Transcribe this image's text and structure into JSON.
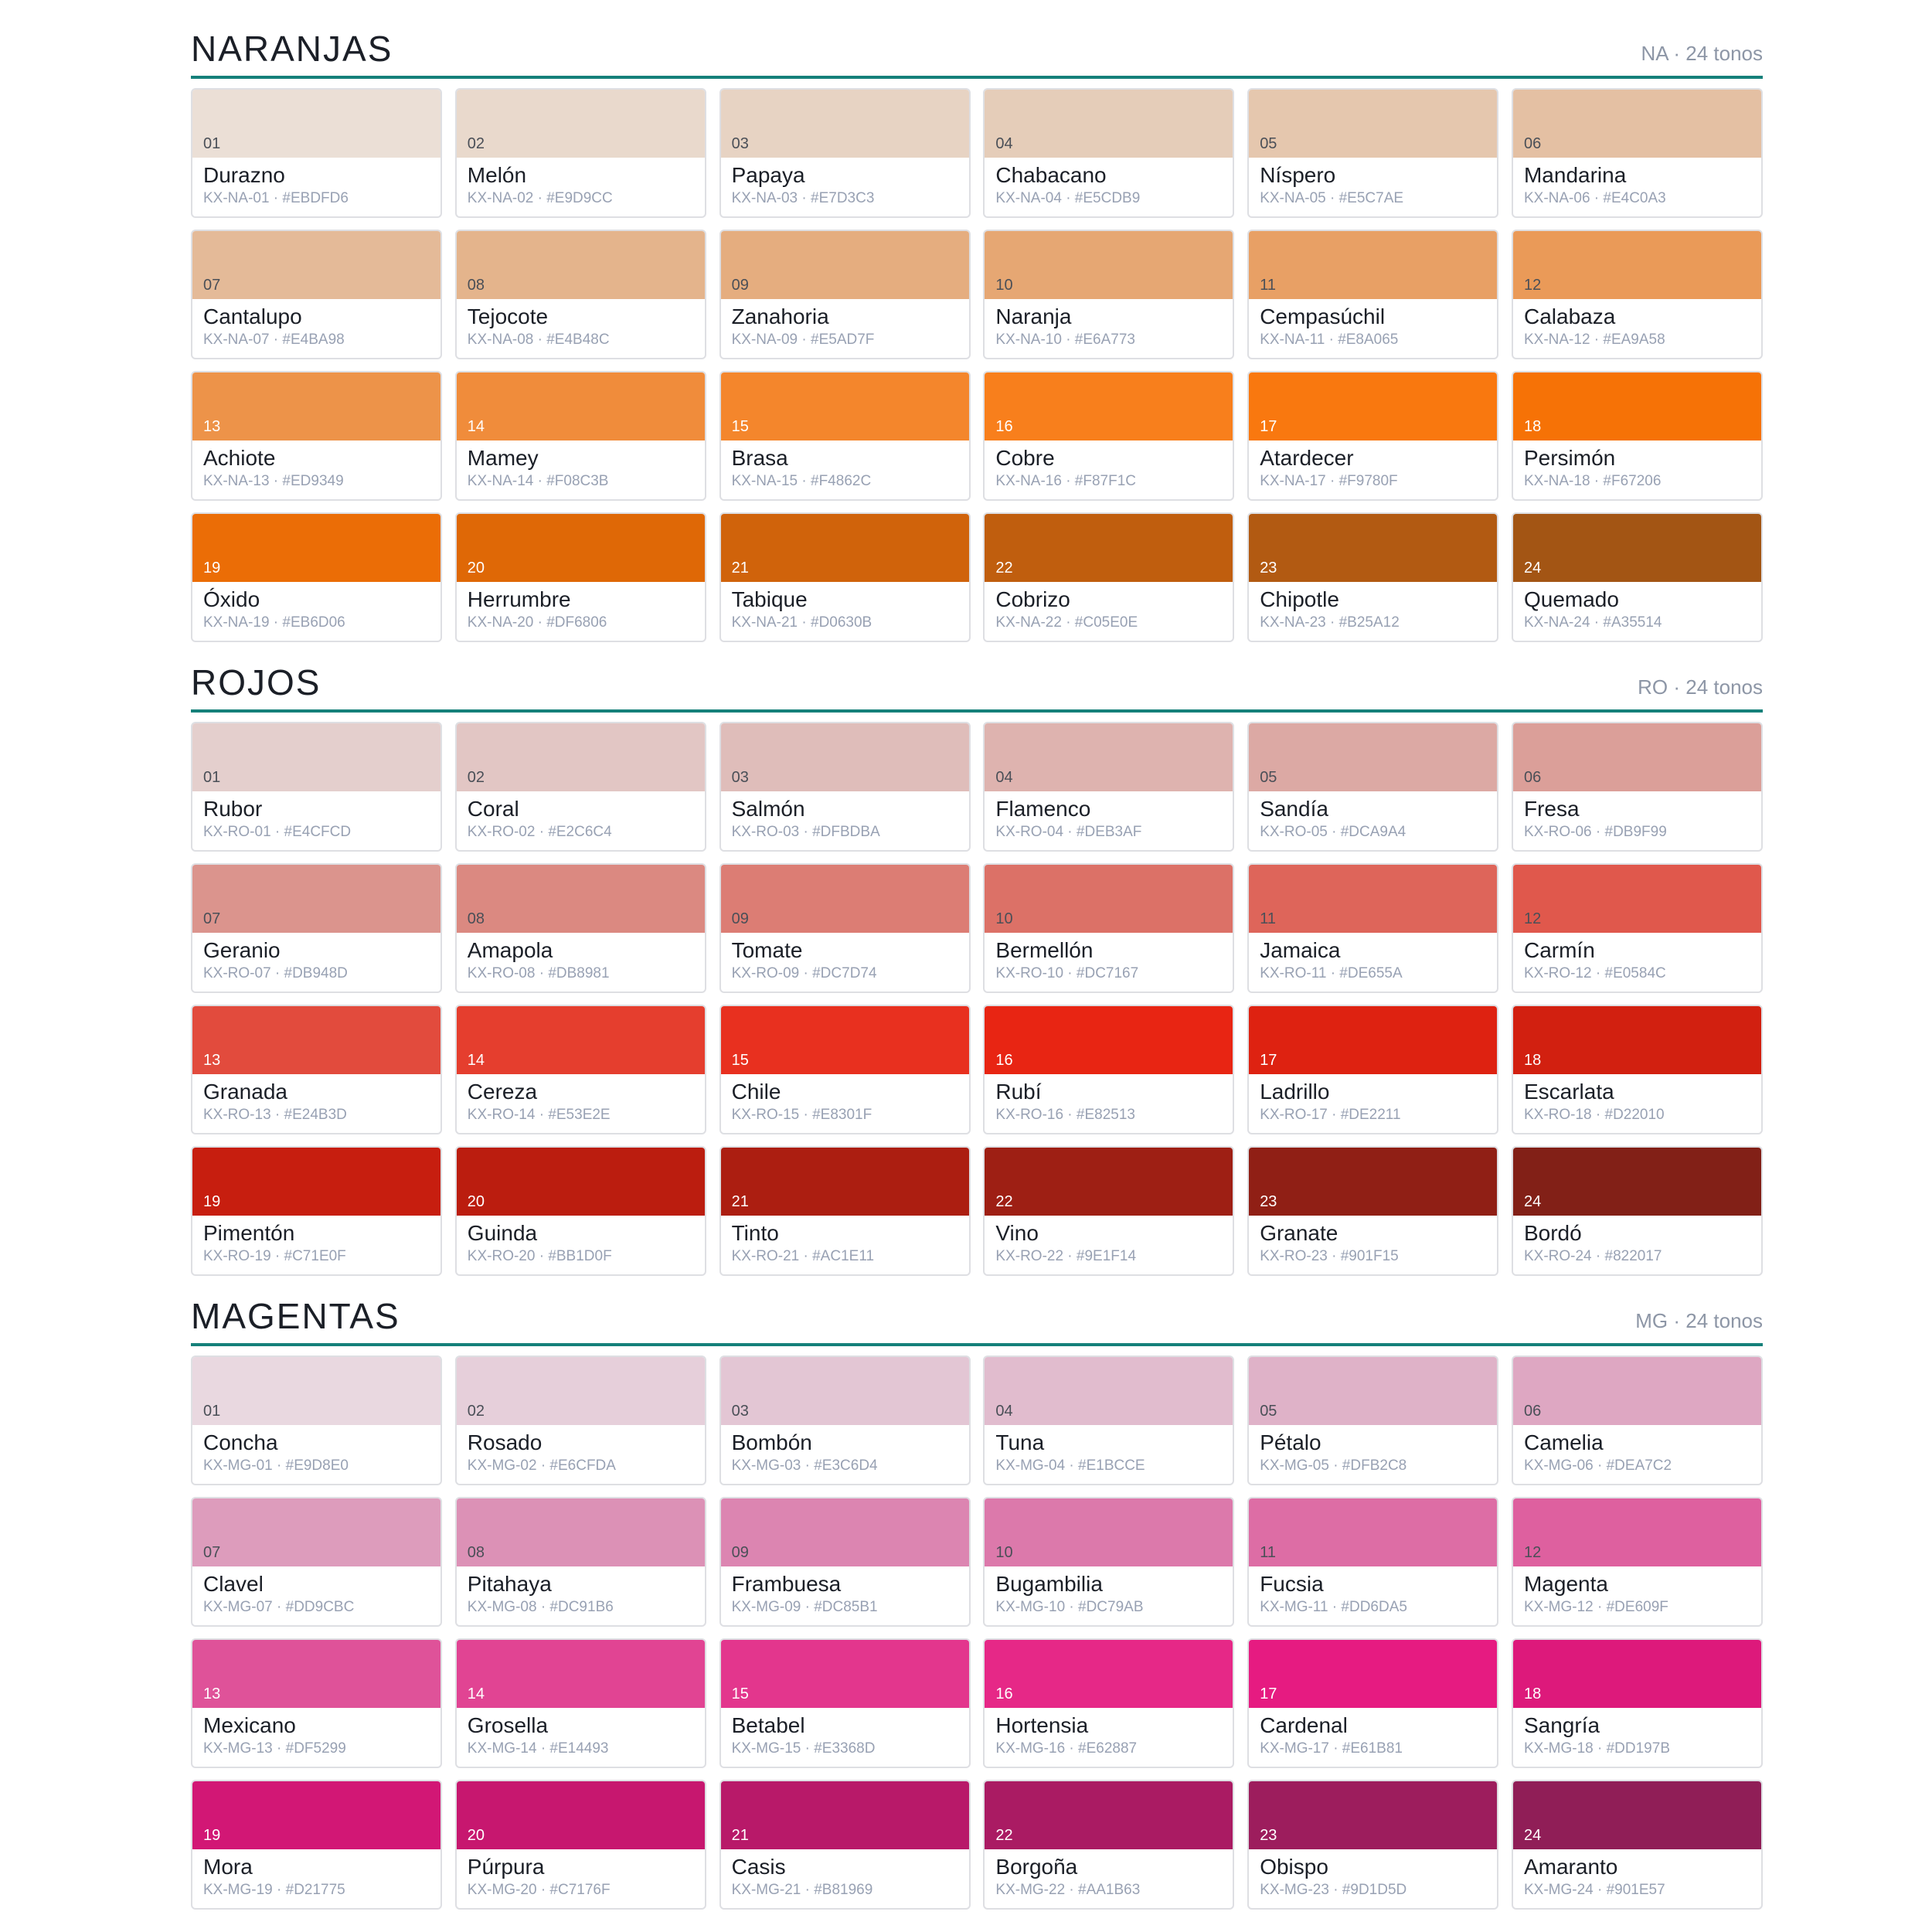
{
  "sections": [
    {
      "title": "NARANJAS",
      "meta": "NA · 24 tonos",
      "swatches": [
        {
          "num": "01",
          "name": "Durazno",
          "code": "KX-NA-01 · #EBDFD6",
          "hex": "#EBDFD6"
        },
        {
          "num": "02",
          "name": "Melón",
          "code": "KX-NA-02 · #E9D9CC",
          "hex": "#E9D9CC"
        },
        {
          "num": "03",
          "name": "Papaya",
          "code": "KX-NA-03 · #E7D3C3",
          "hex": "#E7D3C3"
        },
        {
          "num": "04",
          "name": "Chabacano",
          "code": "KX-NA-04 · #E5CDB9",
          "hex": "#E5CDB9"
        },
        {
          "num": "05",
          "name": "Níspero",
          "code": "KX-NA-05 · #E5C7AE",
          "hex": "#E5C7AE"
        },
        {
          "num": "06",
          "name": "Mandarina",
          "code": "KX-NA-06 · #E4C0A3",
          "hex": "#E4C0A3"
        },
        {
          "num": "07",
          "name": "Cantalupo",
          "code": "KX-NA-07 · #E4BA98",
          "hex": "#E4BA98"
        },
        {
          "num": "08",
          "name": "Tejocote",
          "code": "KX-NA-08 · #E4B48C",
          "hex": "#E4B48C"
        },
        {
          "num": "09",
          "name": "Zanahoria",
          "code": "KX-NA-09 · #E5AD7F",
          "hex": "#E5AD7F"
        },
        {
          "num": "10",
          "name": "Naranja",
          "code": "KX-NA-10 · #E6A773",
          "hex": "#E6A773"
        },
        {
          "num": "11",
          "name": "Cempasúchil",
          "code": "KX-NA-11 · #E8A065",
          "hex": "#E8A065"
        },
        {
          "num": "12",
          "name": "Calabaza",
          "code": "KX-NA-12 · #EA9A58",
          "hex": "#EA9A58"
        },
        {
          "num": "13",
          "name": "Achiote",
          "code": "KX-NA-13 · #ED9349",
          "hex": "#ED9349"
        },
        {
          "num": "14",
          "name": "Mamey",
          "code": "KX-NA-14 · #F08C3B",
          "hex": "#F08C3B"
        },
        {
          "num": "15",
          "name": "Brasa",
          "code": "KX-NA-15 · #F4862C",
          "hex": "#F4862C"
        },
        {
          "num": "16",
          "name": "Cobre",
          "code": "KX-NA-16 · #F87F1C",
          "hex": "#F87F1C"
        },
        {
          "num": "17",
          "name": "Atardecer",
          "code": "KX-NA-17 · #F9780F",
          "hex": "#F9780F"
        },
        {
          "num": "18",
          "name": "Persimón",
          "code": "KX-NA-18 · #F67206",
          "hex": "#F67206"
        },
        {
          "num": "19",
          "name": "Óxido",
          "code": "KX-NA-19 · #EB6D06",
          "hex": "#EB6D06"
        },
        {
          "num": "20",
          "name": "Herrumbre",
          "code": "KX-NA-20 · #DF6806",
          "hex": "#DF6806"
        },
        {
          "num": "21",
          "name": "Tabique",
          "code": "KX-NA-21 · #D0630B",
          "hex": "#D0630B"
        },
        {
          "num": "22",
          "name": "Cobrizo",
          "code": "KX-NA-22 · #C05E0E",
          "hex": "#C05E0E"
        },
        {
          "num": "23",
          "name": "Chipotle",
          "code": "KX-NA-23 · #B25A12",
          "hex": "#B25A12"
        },
        {
          "num": "24",
          "name": "Quemado",
          "code": "KX-NA-24 · #A35514",
          "hex": "#A35514"
        }
      ]
    },
    {
      "title": "ROJOS",
      "meta": "RO · 24 tonos",
      "swatches": [
        {
          "num": "01",
          "name": "Rubor",
          "code": "KX-RO-01 · #E4CFCD",
          "hex": "#E4CFCD"
        },
        {
          "num": "02",
          "name": "Coral",
          "code": "KX-RO-02 · #E2C6C4",
          "hex": "#E2C6C4"
        },
        {
          "num": "03",
          "name": "Salmón",
          "code": "KX-RO-03 · #DFBDBA",
          "hex": "#DFBDBA"
        },
        {
          "num": "04",
          "name": "Flamenco",
          "code": "KX-RO-04 · #DEB3AF",
          "hex": "#DEB3AF"
        },
        {
          "num": "05",
          "name": "Sandía",
          "code": "KX-RO-05 · #DCA9A4",
          "hex": "#DCA9A4"
        },
        {
          "num": "06",
          "name": "Fresa",
          "code": "KX-RO-06 · #DB9F99",
          "hex": "#DB9F99"
        },
        {
          "num": "07",
          "name": "Geranio",
          "code": "KX-RO-07 · #DB948D",
          "hex": "#DB948D"
        },
        {
          "num": "08",
          "name": "Amapola",
          "code": "KX-RO-08 · #DB8981",
          "hex": "#DB8981"
        },
        {
          "num": "09",
          "name": "Tomate",
          "code": "KX-RO-09 · #DC7D74",
          "hex": "#DC7D74"
        },
        {
          "num": "10",
          "name": "Bermellón",
          "code": "KX-RO-10 · #DC7167",
          "hex": "#DC7167"
        },
        {
          "num": "11",
          "name": "Jamaica",
          "code": "KX-RO-11 · #DE655A",
          "hex": "#DE655A"
        },
        {
          "num": "12",
          "name": "Carmín",
          "code": "KX-RO-12 · #E0584C",
          "hex": "#E0584C"
        },
        {
          "num": "13",
          "name": "Granada",
          "code": "KX-RO-13 · #E24B3D",
          "hex": "#E24B3D"
        },
        {
          "num": "14",
          "name": "Cereza",
          "code": "KX-RO-14 · #E53E2E",
          "hex": "#E53E2E"
        },
        {
          "num": "15",
          "name": "Chile",
          "code": "KX-RO-15 · #E8301F",
          "hex": "#E8301F"
        },
        {
          "num": "16",
          "name": "Rubí",
          "code": "KX-RO-16 · #E82513",
          "hex": "#E82513"
        },
        {
          "num": "17",
          "name": "Ladrillo",
          "code": "KX-RO-17 · #DE2211",
          "hex": "#DE2211"
        },
        {
          "num": "18",
          "name": "Escarlata",
          "code": "KX-RO-18 · #D22010",
          "hex": "#D22010"
        },
        {
          "num": "19",
          "name": "Pimentón",
          "code": "KX-RO-19 · #C71E0F",
          "hex": "#C71E0F"
        },
        {
          "num": "20",
          "name": "Guinda",
          "code": "KX-RO-20 · #BB1D0F",
          "hex": "#BB1D0F"
        },
        {
          "num": "21",
          "name": "Tinto",
          "code": "KX-RO-21 · #AC1E11",
          "hex": "#AC1E11"
        },
        {
          "num": "22",
          "name": "Vino",
          "code": "KX-RO-22 · #9E1F14",
          "hex": "#9E1F14"
        },
        {
          "num": "23",
          "name": "Granate",
          "code": "KX-RO-23 · #901F15",
          "hex": "#901F15"
        },
        {
          "num": "24",
          "name": "Bordó",
          "code": "KX-RO-24 · #822017",
          "hex": "#822017"
        }
      ]
    },
    {
      "title": "MAGENTAS",
      "meta": "MG · 24 tonos",
      "swatches": [
        {
          "num": "01",
          "name": "Concha",
          "code": "KX-MG-01 · #E9D8E0",
          "hex": "#E9D8E0"
        },
        {
          "num": "02",
          "name": "Rosado",
          "code": "KX-MG-02 · #E6CFDA",
          "hex": "#E6CFDA"
        },
        {
          "num": "03",
          "name": "Bombón",
          "code": "KX-MG-03 · #E3C6D4",
          "hex": "#E3C6D4"
        },
        {
          "num": "04",
          "name": "Tuna",
          "code": "KX-MG-04 · #E1BCCE",
          "hex": "#E1BCCE"
        },
        {
          "num": "05",
          "name": "Pétalo",
          "code": "KX-MG-05 · #DFB2C8",
          "hex": "#DFB2C8"
        },
        {
          "num": "06",
          "name": "Camelia",
          "code": "KX-MG-06 · #DEA7C2",
          "hex": "#DEA7C2"
        },
        {
          "num": "07",
          "name": "Clavel",
          "code": "KX-MG-07 · #DD9CBC",
          "hex": "#DD9CBC"
        },
        {
          "num": "08",
          "name": "Pitahaya",
          "code": "KX-MG-08 · #DC91B6",
          "hex": "#DC91B6"
        },
        {
          "num": "09",
          "name": "Frambuesa",
          "code": "KX-MG-09 · #DC85B1",
          "hex": "#DC85B1"
        },
        {
          "num": "10",
          "name": "Bugambilia",
          "code": "KX-MG-10 · #DC79AB",
          "hex": "#DC79AB"
        },
        {
          "num": "11",
          "name": "Fucsia",
          "code": "KX-MG-11 · #DD6DA5",
          "hex": "#DD6DA5"
        },
        {
          "num": "12",
          "name": "Magenta",
          "code": "KX-MG-12 · #DE609F",
          "hex": "#DE609F"
        },
        {
          "num": "13",
          "name": "Mexicano",
          "code": "KX-MG-13 · #DF5299",
          "hex": "#DF5299"
        },
        {
          "num": "14",
          "name": "Grosella",
          "code": "KX-MG-14 · #E14493",
          "hex": "#E14493"
        },
        {
          "num": "15",
          "name": "Betabel",
          "code": "KX-MG-15 · #E3368D",
          "hex": "#E3368D"
        },
        {
          "num": "16",
          "name": "Hortensia",
          "code": "KX-MG-16 · #E62887",
          "hex": "#E62887"
        },
        {
          "num": "17",
          "name": "Cardenal",
          "code": "KX-MG-17 · #E61B81",
          "hex": "#E61B81"
        },
        {
          "num": "18",
          "name": "Sangría",
          "code": "KX-MG-18 · #DD197B",
          "hex": "#DD197B"
        },
        {
          "num": "19",
          "name": "Mora",
          "code": "KX-MG-19 · #D21775",
          "hex": "#D21775"
        },
        {
          "num": "20",
          "name": "Púrpura",
          "code": "KX-MG-20 · #C7176F",
          "hex": "#C7176F"
        },
        {
          "num": "21",
          "name": "Casis",
          "code": "KX-MG-21 · #B81969",
          "hex": "#B81969"
        },
        {
          "num": "22",
          "name": "Borgoña",
          "code": "KX-MG-22 · #AA1B63",
          "hex": "#AA1B63"
        },
        {
          "num": "23",
          "name": "Obispo",
          "code": "KX-MG-23 · #9D1D5D",
          "hex": "#9D1D5D"
        },
        {
          "num": "24",
          "name": "Amaranto",
          "code": "KX-MG-24 · #901E57",
          "hex": "#901E57"
        }
      ]
    }
  ]
}
